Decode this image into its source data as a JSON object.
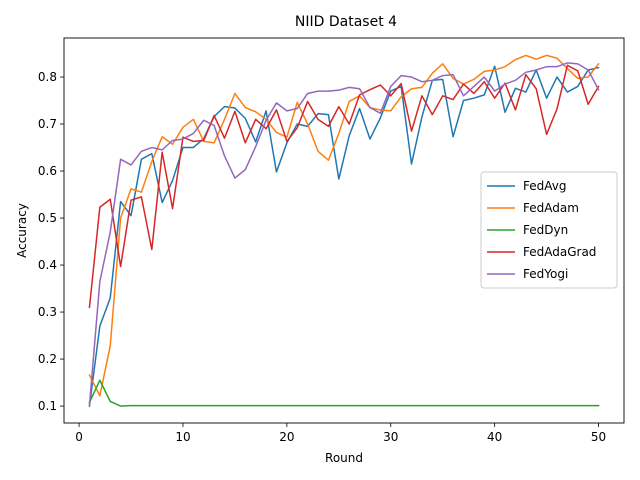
{
  "chart_data": {
    "type": "line",
    "title": "NIID Dataset 4",
    "xlabel": "Round",
    "ylabel": "Accuracy",
    "xlim": [
      -1.45,
      52.45
    ],
    "ylim": [
      0.064,
      0.883
    ],
    "xticks": [
      0,
      10,
      20,
      30,
      40,
      50
    ],
    "yticks": [
      0.1,
      0.2,
      0.3,
      0.4,
      0.5,
      0.6,
      0.7,
      0.8
    ],
    "grid": false,
    "legend_position": "center-right",
    "x": [
      1,
      2,
      3,
      4,
      5,
      6,
      7,
      8,
      9,
      10,
      11,
      12,
      13,
      14,
      15,
      16,
      17,
      18,
      19,
      20,
      21,
      22,
      23,
      24,
      25,
      26,
      27,
      28,
      29,
      30,
      31,
      32,
      33,
      34,
      35,
      36,
      37,
      38,
      39,
      40,
      41,
      42,
      43,
      44,
      45,
      46,
      47,
      48,
      49,
      50
    ],
    "series": [
      {
        "name": "FedAvg",
        "color": "#1f77b4",
        "values": [
          0.1,
          0.27,
          0.33,
          0.535,
          0.505,
          0.625,
          0.637,
          0.533,
          0.58,
          0.65,
          0.65,
          0.669,
          0.716,
          0.737,
          0.734,
          0.712,
          0.662,
          0.728,
          0.598,
          0.66,
          0.7,
          0.695,
          0.722,
          0.72,
          0.583,
          0.675,
          0.733,
          0.668,
          0.713,
          0.77,
          0.78,
          0.615,
          0.715,
          0.793,
          0.795,
          0.673,
          0.75,
          0.755,
          0.762,
          0.823,
          0.725,
          0.776,
          0.768,
          0.815,
          0.755,
          0.8,
          0.768,
          0.78,
          0.815,
          0.82
        ]
      },
      {
        "name": "FedAdam",
        "color": "#ff7f0e",
        "values": [
          0.166,
          0.122,
          0.228,
          0.5,
          0.562,
          0.555,
          0.62,
          0.673,
          0.657,
          0.693,
          0.71,
          0.663,
          0.66,
          0.71,
          0.765,
          0.735,
          0.726,
          0.71,
          0.682,
          0.672,
          0.746,
          0.7,
          0.642,
          0.623,
          0.68,
          0.748,
          0.76,
          0.735,
          0.73,
          0.728,
          0.758,
          0.775,
          0.778,
          0.808,
          0.828,
          0.797,
          0.785,
          0.795,
          0.812,
          0.815,
          0.822,
          0.837,
          0.846,
          0.838,
          0.846,
          0.84,
          0.818,
          0.797,
          0.8,
          0.828
        ]
      },
      {
        "name": "FedDyn",
        "color": "#2ca02c",
        "values": [
          0.108,
          0.155,
          0.11,
          0.1,
          0.101,
          0.101,
          0.101,
          0.101,
          0.101,
          0.101,
          0.101,
          0.101,
          0.101,
          0.101,
          0.101,
          0.101,
          0.101,
          0.101,
          0.101,
          0.101,
          0.101,
          0.101,
          0.101,
          0.101,
          0.101,
          0.101,
          0.101,
          0.101,
          0.101,
          0.101,
          0.101,
          0.101,
          0.101,
          0.101,
          0.101,
          0.101,
          0.101,
          0.101,
          0.101,
          0.101,
          0.101,
          0.101,
          0.101,
          0.101,
          0.101,
          0.101,
          0.101,
          0.101,
          0.101,
          0.101
        ]
      },
      {
        "name": "FedAdaGrad",
        "color": "#d62728",
        "values": [
          0.31,
          0.523,
          0.54,
          0.397,
          0.538,
          0.545,
          0.433,
          0.64,
          0.52,
          0.672,
          0.663,
          0.665,
          0.718,
          0.67,
          0.727,
          0.66,
          0.71,
          0.69,
          0.73,
          0.663,
          0.692,
          0.748,
          0.71,
          0.695,
          0.737,
          0.7,
          0.762,
          0.773,
          0.783,
          0.76,
          0.786,
          0.685,
          0.76,
          0.72,
          0.76,
          0.752,
          0.785,
          0.765,
          0.79,
          0.755,
          0.787,
          0.73,
          0.805,
          0.775,
          0.678,
          0.732,
          0.825,
          0.813,
          0.742,
          0.78
        ]
      },
      {
        "name": "FedYogi",
        "color": "#9467bd",
        "values": [
          0.102,
          0.365,
          0.47,
          0.625,
          0.613,
          0.642,
          0.65,
          0.645,
          0.665,
          0.668,
          0.68,
          0.708,
          0.697,
          0.632,
          0.585,
          0.603,
          0.652,
          0.708,
          0.745,
          0.728,
          0.733,
          0.765,
          0.77,
          0.77,
          0.772,
          0.778,
          0.775,
          0.735,
          0.723,
          0.78,
          0.803,
          0.8,
          0.79,
          0.793,
          0.803,
          0.805,
          0.76,
          0.78,
          0.8,
          0.77,
          0.785,
          0.793,
          0.81,
          0.815,
          0.822,
          0.822,
          0.83,
          0.828,
          0.815,
          0.773
        ]
      }
    ]
  }
}
